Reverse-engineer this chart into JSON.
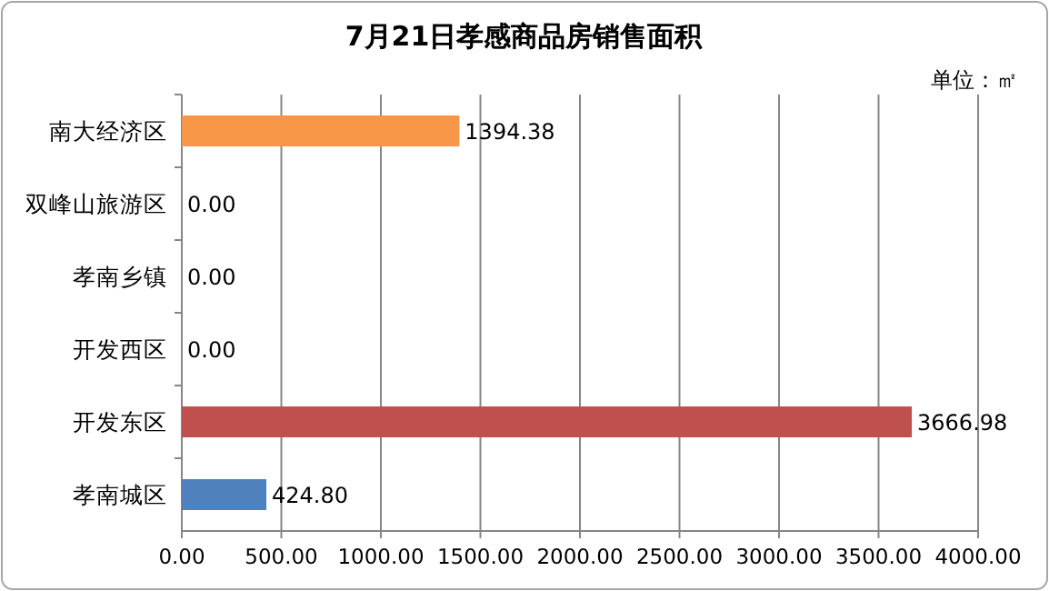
{
  "chart_data": {
    "type": "bar",
    "orientation": "horizontal",
    "title": "7月21日孝感商品房销售面积",
    "annotations": [
      "单位：㎡"
    ],
    "categories": [
      "南大经济区",
      "双峰山旅游区",
      "孝南乡镇",
      "开发西区",
      "开发东区",
      "孝南城区"
    ],
    "values": [
      1394.38,
      0,
      0,
      0,
      3666.98,
      424.8
    ],
    "value_labels": [
      "1394.38",
      "0.00",
      "0.00",
      "0.00",
      "3666.98",
      "424.80"
    ],
    "colors": [
      "#f79646",
      "#4f81bd",
      "#4f81bd",
      "#4f81bd",
      "#c0504d",
      "#4f81bd"
    ],
    "xlim": [
      0,
      4000
    ],
    "xticks": [
      {
        "value": 0,
        "label": "0.00"
      },
      {
        "value": 500,
        "label": "500.00"
      },
      {
        "value": 1000,
        "label": "1000.00"
      },
      {
        "value": 1500,
        "label": "1500.00"
      },
      {
        "value": 2000,
        "label": "2000.00"
      },
      {
        "value": 2500,
        "label": "2500.00"
      },
      {
        "value": 3000,
        "label": "3000.00"
      },
      {
        "value": 3500,
        "label": "3500.00"
      },
      {
        "value": 4000,
        "label": "4000.00"
      }
    ],
    "grid": "x"
  }
}
